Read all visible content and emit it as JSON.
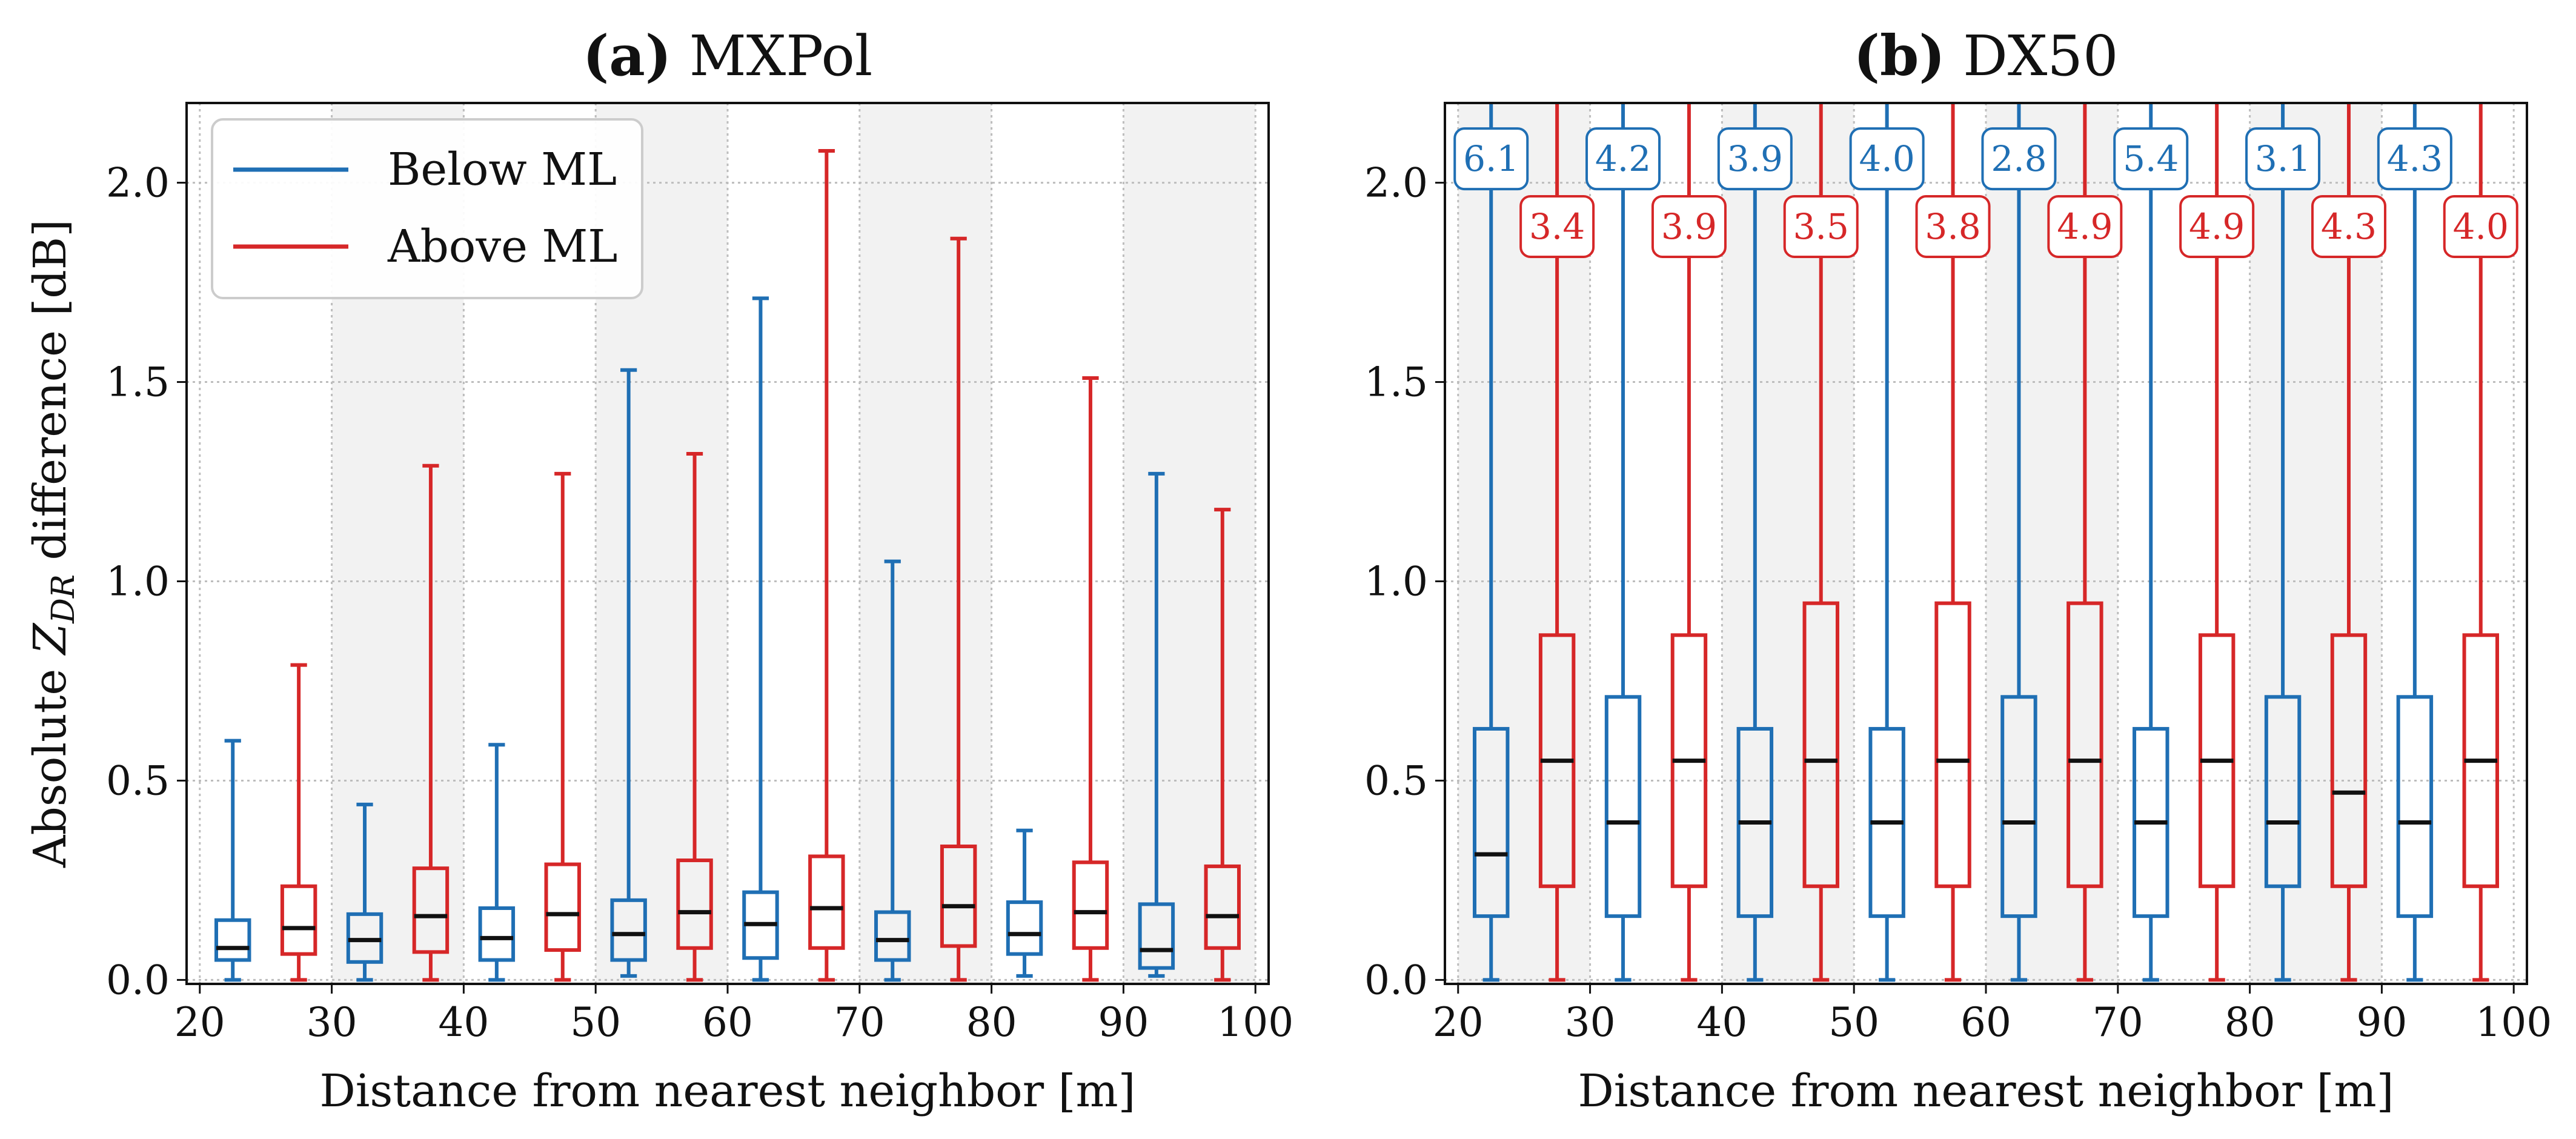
{
  "colors": {
    "below": "#1f6fb4",
    "above": "#d62728",
    "median": "#111111",
    "band": "#f2f2f2",
    "grid": "#bdbdbd"
  },
  "legend": {
    "below_label": "Below ML",
    "above_label": "Above ML",
    "placement": "upper-left"
  },
  "chart_data": [
    {
      "panel": "a",
      "type": "box",
      "title_letter": "(a)",
      "title_name": "MXPol",
      "xlabel": "Distance from nearest neighbor [m]",
      "ylabel_prefix": "Absolute ",
      "ylabel_var": "Z",
      "ylabel_sub": "DR",
      "ylabel_suffix": " difference [dB]",
      "xlim": [
        19,
        101
      ],
      "ylim": [
        -0.01,
        2.2
      ],
      "xticks": [
        20,
        30,
        40,
        50,
        60,
        70,
        80,
        90,
        100
      ],
      "yticks": [
        0.0,
        0.5,
        1.0,
        1.5,
        2.0
      ],
      "ytick_labels": [
        "0.0",
        "0.5",
        "1.0",
        "1.5",
        "2.0"
      ],
      "shaded_bins": [
        [
          30,
          40
        ],
        [
          50,
          60
        ],
        [
          70,
          80
        ],
        [
          90,
          100
        ]
      ],
      "box_width": 2.5,
      "series": [
        {
          "name": "Below ML",
          "color_key": "below",
          "boxes": [
            {
              "x": 22.5,
              "whislo": 0.0,
              "q1": 0.05,
              "med": 0.08,
              "q3": 0.15,
              "whishi": 0.6
            },
            {
              "x": 32.5,
              "whislo": 0.0,
              "q1": 0.045,
              "med": 0.1,
              "q3": 0.165,
              "whishi": 0.44
            },
            {
              "x": 42.5,
              "whislo": 0.0,
              "q1": 0.05,
              "med": 0.105,
              "q3": 0.18,
              "whishi": 0.59
            },
            {
              "x": 52.5,
              "whislo": 0.01,
              "q1": 0.05,
              "med": 0.115,
              "q3": 0.2,
              "whishi": 1.53
            },
            {
              "x": 62.5,
              "whislo": 0.0,
              "q1": 0.055,
              "med": 0.14,
              "q3": 0.22,
              "whishi": 1.71
            },
            {
              "x": 72.5,
              "whislo": 0.0,
              "q1": 0.05,
              "med": 0.1,
              "q3": 0.17,
              "whishi": 1.05
            },
            {
              "x": 82.5,
              "whislo": 0.01,
              "q1": 0.065,
              "med": 0.115,
              "q3": 0.195,
              "whishi": 0.375
            },
            {
              "x": 92.5,
              "whislo": 0.01,
              "q1": 0.03,
              "med": 0.075,
              "q3": 0.19,
              "whishi": 1.27
            }
          ]
        },
        {
          "name": "Above ML",
          "color_key": "above",
          "boxes": [
            {
              "x": 27.5,
              "whislo": 0.0,
              "q1": 0.065,
              "med": 0.13,
              "q3": 0.235,
              "whishi": 0.79
            },
            {
              "x": 37.5,
              "whislo": 0.0,
              "q1": 0.07,
              "med": 0.16,
              "q3": 0.28,
              "whishi": 1.29
            },
            {
              "x": 47.5,
              "whislo": 0.0,
              "q1": 0.075,
              "med": 0.165,
              "q3": 0.29,
              "whishi": 1.27
            },
            {
              "x": 57.5,
              "whislo": 0.0,
              "q1": 0.08,
              "med": 0.17,
              "q3": 0.3,
              "whishi": 1.32
            },
            {
              "x": 67.5,
              "whislo": 0.0,
              "q1": 0.08,
              "med": 0.18,
              "q3": 0.31,
              "whishi": 2.08
            },
            {
              "x": 77.5,
              "whislo": 0.0,
              "q1": 0.085,
              "med": 0.185,
              "q3": 0.335,
              "whishi": 1.86
            },
            {
              "x": 87.5,
              "whislo": 0.0,
              "q1": 0.08,
              "med": 0.17,
              "q3": 0.295,
              "whishi": 1.51
            },
            {
              "x": 97.5,
              "whislo": 0.0,
              "q1": 0.08,
              "med": 0.16,
              "q3": 0.285,
              "whishi": 1.18
            }
          ]
        }
      ]
    },
    {
      "panel": "b",
      "type": "box",
      "title_letter": "(b)",
      "title_name": "DX50",
      "xlabel": "Distance from nearest neighbor [m]",
      "xlim": [
        19,
        101
      ],
      "ylim": [
        -0.01,
        2.2
      ],
      "xticks": [
        20,
        30,
        40,
        50,
        60,
        70,
        80,
        90,
        100
      ],
      "yticks": [
        0.0,
        0.5,
        1.0,
        1.5,
        2.0
      ],
      "ytick_labels": [
        "0.0",
        "0.5",
        "1.0",
        "1.5",
        "2.0"
      ],
      "shaded_bins": [
        [
          20,
          30
        ],
        [
          40,
          50
        ],
        [
          60,
          70
        ],
        [
          80,
          90
        ]
      ],
      "box_width": 2.5,
      "series": [
        {
          "name": "Below ML",
          "color_key": "below",
          "boxes": [
            {
              "x": 22.5,
              "whislo": 0.0,
              "q1": 0.16,
              "med": 0.315,
              "q3": 0.63,
              "whishi": 6.1,
              "label": "6.1"
            },
            {
              "x": 32.5,
              "whislo": 0.0,
              "q1": 0.16,
              "med": 0.395,
              "q3": 0.71,
              "whishi": 4.2,
              "label": "4.2"
            },
            {
              "x": 42.5,
              "whislo": 0.0,
              "q1": 0.16,
              "med": 0.395,
              "q3": 0.63,
              "whishi": 3.9,
              "label": "3.9"
            },
            {
              "x": 52.5,
              "whislo": 0.0,
              "q1": 0.16,
              "med": 0.395,
              "q3": 0.63,
              "whishi": 4.0,
              "label": "4.0"
            },
            {
              "x": 62.5,
              "whislo": 0.0,
              "q1": 0.16,
              "med": 0.395,
              "q3": 0.71,
              "whishi": 2.8,
              "label": "2.8"
            },
            {
              "x": 72.5,
              "whislo": 0.0,
              "q1": 0.16,
              "med": 0.395,
              "q3": 0.63,
              "whishi": 5.4,
              "label": "5.4"
            },
            {
              "x": 82.5,
              "whislo": 0.0,
              "q1": 0.235,
              "med": 0.395,
              "q3": 0.71,
              "whishi": 3.1,
              "label": "3.1"
            },
            {
              "x": 92.5,
              "whislo": 0.0,
              "q1": 0.16,
              "med": 0.395,
              "q3": 0.71,
              "whishi": 4.3,
              "label": "4.3"
            }
          ]
        },
        {
          "name": "Above ML",
          "color_key": "above",
          "boxes": [
            {
              "x": 27.5,
              "whislo": 0.0,
              "q1": 0.235,
              "med": 0.55,
              "q3": 0.865,
              "whishi": 3.4,
              "label": "3.4"
            },
            {
              "x": 37.5,
              "whislo": 0.0,
              "q1": 0.235,
              "med": 0.55,
              "q3": 0.865,
              "whishi": 3.9,
              "label": "3.9"
            },
            {
              "x": 47.5,
              "whislo": 0.0,
              "q1": 0.235,
              "med": 0.55,
              "q3": 0.945,
              "whishi": 3.5,
              "label": "3.5"
            },
            {
              "x": 57.5,
              "whislo": 0.0,
              "q1": 0.235,
              "med": 0.55,
              "q3": 0.945,
              "whishi": 3.8,
              "label": "3.8"
            },
            {
              "x": 67.5,
              "whislo": 0.0,
              "q1": 0.235,
              "med": 0.55,
              "q3": 0.945,
              "whishi": 4.9,
              "label": "4.9"
            },
            {
              "x": 77.5,
              "whislo": 0.0,
              "q1": 0.235,
              "med": 0.55,
              "q3": 0.865,
              "whishi": 4.9,
              "label": "4.9"
            },
            {
              "x": 87.5,
              "whislo": 0.0,
              "q1": 0.235,
              "med": 0.47,
              "q3": 0.865,
              "whishi": 4.3,
              "label": "4.3"
            },
            {
              "x": 97.5,
              "whislo": 0.0,
              "q1": 0.235,
              "med": 0.55,
              "q3": 0.865,
              "whishi": 4.0,
              "label": "4.0"
            }
          ]
        }
      ]
    }
  ]
}
